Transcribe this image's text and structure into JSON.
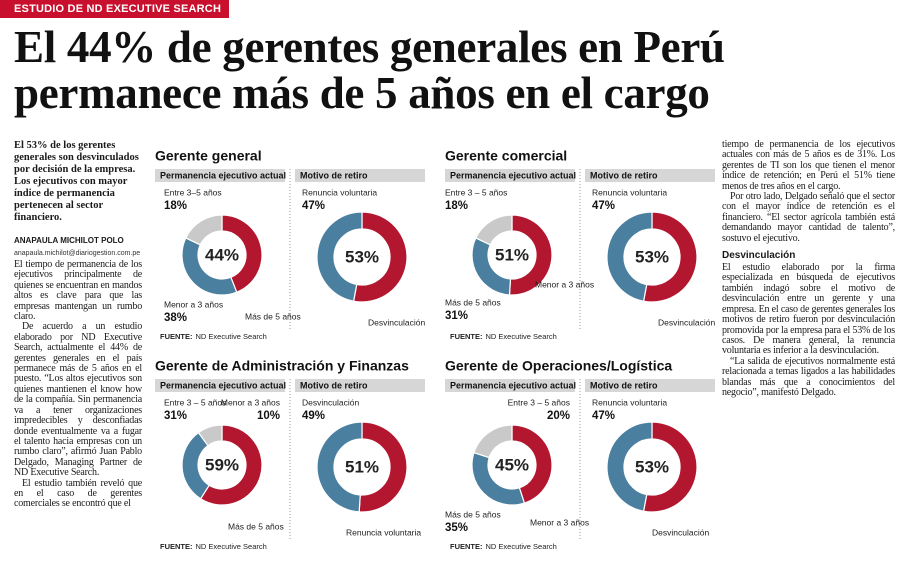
{
  "header": {
    "kicker": "ESTUDIO DE ND EXECUTIVE SEARCH",
    "title": [
      "El 44% de gerentes generales en Perú",
      "permanece más de 5 años en el cargo"
    ]
  },
  "left_column": {
    "lead": "El 53% de los gerentes generales son desvinculados por decisión de la empresa. Los ejecutivos con mayor índice de permanencia pertenecen al sector financiero.",
    "author": "ANAPAULA MICHILOT POLO",
    "email": "anapaula.michilot@diariogestion.com.pe",
    "paragraphs": [
      "El tiempo de permanencia de los ejecutivos principalmente de quienes se encuentran en mandos altos es clave para que las empresas mantengan un rumbo claro.",
      "De acuerdo a un estudio elaborado por ND Executive Search, actualmente el 44% de gerentes generales en el país permanece más de 5 años en el puesto. “Los altos ejecutivos son quienes mantienen el know how de la compañía. Sin permanencia va a tener organizaciones impredecibles y desconfiadas donde eventualmente va a fugar el talento hacia empresas con un rumbo claro”, afirmó Juan Pablo Delgado, Managing Partner de ND Executive Search.",
      "El estudio también reveló que en el caso de gerentes comerciales se encontró que el"
    ]
  },
  "right_column": {
    "paragraphs": [
      "tiempo de permanencia de los ejecutivos actuales con más de 5 años es de 31%. Los gerentes de TI son los que tienen el menor índice de retención; en Perú el 51% tiene menos de tres años en el cargo.",
      "Por otro lado, Delgado señaló que el sector con el mayor índice de retención es el financiero. “El sector agrícola también está demandando mayor cantidad de talento”, sostuvo el ejecutivo."
    ],
    "subhead": "Desvinculación",
    "paragraphs_after": [
      "El estudio elaborado por la firma especializada en búsqueda de ejecutivos también indagó sobre el motivo de desvinculación entre un gerente y una empresa. En el caso de gerentes generales los motivos de retiro fueron por desvinculación promovida por la empresa para el 53% de los casos. De manera general, la renuncia voluntaria es inferior a la desvinculación.",
      "“La salida de ejecutivos normalmente está relacionada a temas ligados a las habilidades blandas más que a conocimientos del negocio”, manifestó Delgado."
    ]
  },
  "chart_data": [
    {
      "title": "Gerente general",
      "source_label": "FUENTE:",
      "source": "ND Executive Search",
      "charts": [
        {
          "type": "donut",
          "heading": "Permanencia ejecutivo actual",
          "center": 2,
          "segments": [
            {
              "name": "Entre 3–5 años",
              "value": 18,
              "value_label": "18%",
              "color": "#c9c9c9"
            },
            {
              "name": "Menor a 3 años",
              "value": 38,
              "value_label": "38%",
              "color": "#4a7fa0"
            },
            {
              "name": "Más de 5 años",
              "value": 44,
              "value_label": "44%",
              "color": "#b3162f"
            }
          ]
        },
        {
          "type": "donut",
          "heading": "Motivo de retiro",
          "center": 1,
          "segments": [
            {
              "name": "Renuncia voluntaria",
              "value": 47,
              "value_label": "47%",
              "color": "#4a7fa0"
            },
            {
              "name": "Desvinculación",
              "value": 53,
              "value_label": "53%",
              "color": "#b3162f"
            }
          ]
        }
      ]
    },
    {
      "title": "Gerente comercial",
      "source_label": "FUENTE:",
      "source": "ND Executive Search",
      "charts": [
        {
          "type": "donut",
          "heading": "Permanencia ejecutivo actual",
          "center": 2,
          "segments": [
            {
              "name": "Entre 3 – 5 años",
              "value": 18,
              "value_label": "18%",
              "color": "#c9c9c9"
            },
            {
              "name": "Más de 5 años",
              "value": 31,
              "value_label": "31%",
              "color": "#4a7fa0"
            },
            {
              "name": "Menor a 3 años",
              "value": 51,
              "value_label": "51%",
              "color": "#b3162f"
            }
          ]
        },
        {
          "type": "donut",
          "heading": "Motivo de retiro",
          "center": 1,
          "segments": [
            {
              "name": "Renuncia voluntaria",
              "value": 47,
              "value_label": "47%",
              "color": "#4a7fa0"
            },
            {
              "name": "Desvinculación",
              "value": 53,
              "value_label": "53%",
              "color": "#b3162f"
            }
          ]
        }
      ]
    },
    {
      "title": "Gerente de Administración y Finanzas",
      "source_label": "FUENTE:",
      "source": "ND Executive Search",
      "charts": [
        {
          "type": "donut",
          "heading": "Permanencia ejecutivo actual",
          "center": 2,
          "segments": [
            {
              "name": "Menor a 3 años",
              "value": 10,
              "value_label": "10%",
              "color": "#c9c9c9"
            },
            {
              "name": "Entre 3 – 5 años",
              "value": 31,
              "value_label": "31%",
              "color": "#4a7fa0"
            },
            {
              "name": "Más de 5 años",
              "value": 59,
              "value_label": "59%",
              "color": "#b3162f"
            }
          ]
        },
        {
          "type": "donut",
          "heading": "Motivo de retiro",
          "center": 1,
          "segments": [
            {
              "name": "Desvinculación",
              "value": 49,
              "value_label": "49%",
              "color": "#4a7fa0"
            },
            {
              "name": "Renuncia voluntaria",
              "value": 51,
              "value_label": "51%",
              "color": "#b3162f"
            }
          ]
        }
      ]
    },
    {
      "title": "Gerente de Operaciones/Logística",
      "source_label": "FUENTE:",
      "source": "ND Executive Search",
      "charts": [
        {
          "type": "donut",
          "heading": "Permanencia ejecutivo actual",
          "center": 2,
          "segments": [
            {
              "name": "Entre 3 – 5 años",
              "value": 20,
              "value_label": "20%",
              "color": "#c9c9c9"
            },
            {
              "name": "Más de 5 años",
              "value": 35,
              "value_label": "35%",
              "color": "#4a7fa0"
            },
            {
              "name": "Menor a 3 años",
              "value": 45,
              "value_label": "45%",
              "color": "#b3162f"
            }
          ]
        },
        {
          "type": "donut",
          "heading": "Motivo de retiro",
          "center": 1,
          "segments": [
            {
              "name": "Renuncia voluntaria",
              "value": 47,
              "value_label": "47%",
              "color": "#4a7fa0"
            },
            {
              "name": "Desvinculación",
              "value": 53,
              "value_label": "53%",
              "color": "#b3162f"
            }
          ]
        }
      ]
    }
  ]
}
